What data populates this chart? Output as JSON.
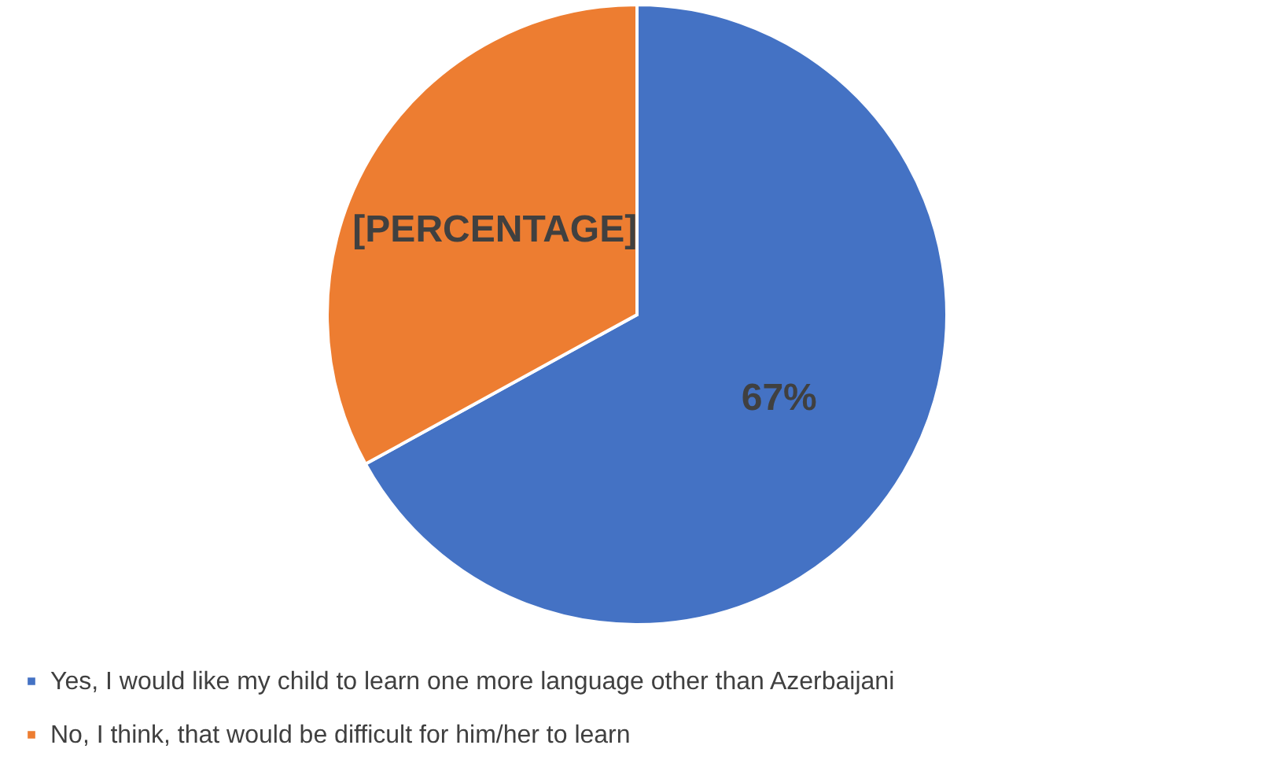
{
  "chart_data": {
    "type": "pie",
    "categories": [
      "Yes, I would like my child to learn one more language other than Azerbaijani",
      "No, I think, that would be difficult for him/her to learn"
    ],
    "values": [
      67,
      33
    ],
    "colors": [
      "#4472c4",
      "#ed7d31"
    ],
    "value_labels": [
      "67%",
      "[PERCENTAGE]"
    ],
    "legend": "bottom left"
  }
}
